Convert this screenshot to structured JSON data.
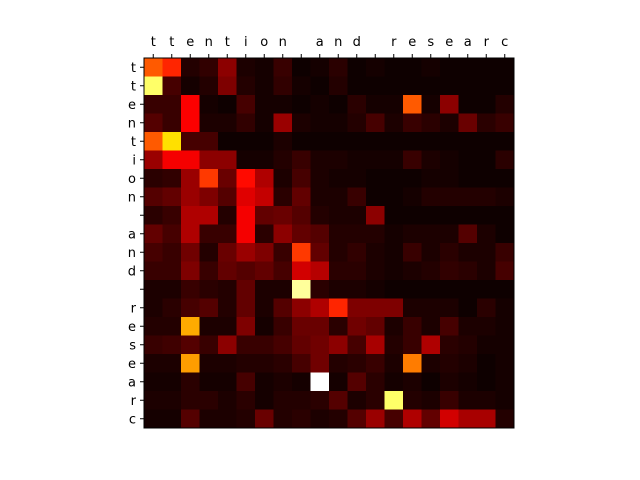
{
  "chart_data": {
    "type": "heatmap",
    "title": "",
    "xlabel": "",
    "ylabel": "",
    "colormap": "hot",
    "x_tick_position": "top",
    "x_labels": [
      "t",
      "t",
      "e",
      "n",
      "t",
      "i",
      "o",
      "n",
      " ",
      "a",
      "n",
      "d",
      " ",
      "r",
      "e",
      "s",
      "e",
      "a",
      "r",
      "c"
    ],
    "y_labels": [
      "t",
      "t",
      "e",
      "n",
      "t",
      "i",
      "o",
      "n",
      " ",
      "a",
      "n",
      "d",
      " ",
      "r",
      "e",
      "s",
      "e",
      "a",
      "r",
      "c"
    ],
    "values": [
      [
        0.5,
        0.42,
        0.05,
        0.07,
        0.2,
        0.04,
        0.03,
        0.08,
        0.02,
        0.03,
        0.06,
        0.02,
        0.03,
        0.02,
        0.02,
        0.03,
        0.02,
        0.02,
        0.02,
        0.02
      ],
      [
        0.85,
        0.1,
        0.03,
        0.05,
        0.18,
        0.05,
        0.03,
        0.07,
        0.03,
        0.02,
        0.05,
        0.02,
        0.02,
        0.02,
        0.02,
        0.02,
        0.02,
        0.02,
        0.02,
        0.02
      ],
      [
        0.08,
        0.08,
        0.36,
        0.03,
        0.02,
        0.1,
        0.03,
        0.03,
        0.02,
        0.03,
        0.02,
        0.06,
        0.03,
        0.03,
        0.5,
        0.03,
        0.2,
        0.02,
        0.02,
        0.05
      ],
      [
        0.12,
        0.08,
        0.36,
        0.04,
        0.04,
        0.07,
        0.03,
        0.22,
        0.04,
        0.03,
        0.03,
        0.05,
        0.1,
        0.04,
        0.08,
        0.06,
        0.04,
        0.15,
        0.06,
        0.08
      ],
      [
        0.5,
        0.7,
        0.1,
        0.1,
        0.02,
        0.02,
        0.02,
        0.04,
        0.02,
        0.02,
        0.02,
        0.02,
        0.02,
        0.02,
        0.02,
        0.02,
        0.02,
        0.02,
        0.02,
        0.02
      ],
      [
        0.22,
        0.35,
        0.35,
        0.2,
        0.2,
        0.03,
        0.03,
        0.05,
        0.08,
        0.04,
        0.04,
        0.03,
        0.03,
        0.03,
        0.08,
        0.04,
        0.03,
        0.02,
        0.02,
        0.06
      ],
      [
        0.06,
        0.07,
        0.22,
        0.45,
        0.15,
        0.38,
        0.25,
        0.04,
        0.1,
        0.04,
        0.03,
        0.03,
        0.02,
        0.02,
        0.02,
        0.03,
        0.03,
        0.02,
        0.02,
        0.02
      ],
      [
        0.12,
        0.14,
        0.22,
        0.18,
        0.12,
        0.32,
        0.28,
        0.06,
        0.14,
        0.04,
        0.04,
        0.08,
        0.02,
        0.02,
        0.03,
        0.05,
        0.05,
        0.05,
        0.05,
        0.04
      ],
      [
        0.06,
        0.08,
        0.25,
        0.25,
        0.05,
        0.35,
        0.14,
        0.15,
        0.12,
        0.05,
        0.04,
        0.04,
        0.2,
        0.02,
        0.02,
        0.02,
        0.02,
        0.02,
        0.02,
        0.02
      ],
      [
        0.14,
        0.1,
        0.25,
        0.08,
        0.08,
        0.35,
        0.06,
        0.2,
        0.14,
        0.12,
        0.05,
        0.05,
        0.05,
        0.03,
        0.04,
        0.04,
        0.04,
        0.12,
        0.04,
        0.02
      ],
      [
        0.1,
        0.08,
        0.16,
        0.05,
        0.15,
        0.22,
        0.18,
        0.08,
        0.45,
        0.14,
        0.05,
        0.07,
        0.04,
        0.03,
        0.08,
        0.04,
        0.06,
        0.04,
        0.04,
        0.08
      ],
      [
        0.08,
        0.08,
        0.18,
        0.08,
        0.14,
        0.12,
        0.14,
        0.1,
        0.3,
        0.26,
        0.06,
        0.06,
        0.04,
        0.03,
        0.04,
        0.05,
        0.07,
        0.06,
        0.04,
        0.1
      ],
      [
        0.04,
        0.04,
        0.08,
        0.06,
        0.05,
        0.14,
        0.04,
        0.04,
        0.9,
        0.06,
        0.04,
        0.04,
        0.03,
        0.02,
        0.02,
        0.02,
        0.02,
        0.02,
        0.02,
        0.02
      ],
      [
        0.04,
        0.06,
        0.1,
        0.12,
        0.05,
        0.14,
        0.04,
        0.12,
        0.2,
        0.25,
        0.42,
        0.18,
        0.18,
        0.18,
        0.04,
        0.04,
        0.04,
        0.02,
        0.06,
        0.03
      ],
      [
        0.05,
        0.05,
        0.62,
        0.04,
        0.04,
        0.18,
        0.03,
        0.08,
        0.15,
        0.15,
        0.06,
        0.16,
        0.14,
        0.04,
        0.08,
        0.04,
        0.1,
        0.04,
        0.04,
        0.03
      ],
      [
        0.08,
        0.09,
        0.12,
        0.08,
        0.2,
        0.08,
        0.08,
        0.1,
        0.14,
        0.16,
        0.2,
        0.1,
        0.24,
        0.05,
        0.08,
        0.25,
        0.06,
        0.05,
        0.03,
        0.03
      ],
      [
        0.04,
        0.04,
        0.6,
        0.04,
        0.04,
        0.05,
        0.05,
        0.06,
        0.1,
        0.16,
        0.05,
        0.06,
        0.08,
        0.04,
        0.55,
        0.04,
        0.05,
        0.04,
        0.02,
        0.03
      ],
      [
        0.03,
        0.03,
        0.06,
        0.03,
        0.03,
        0.1,
        0.03,
        0.04,
        0.03,
        1.0,
        0.03,
        0.12,
        0.06,
        0.03,
        0.04,
        0.02,
        0.04,
        0.03,
        0.02,
        0.03
      ],
      [
        0.04,
        0.04,
        0.06,
        0.06,
        0.04,
        0.06,
        0.03,
        0.05,
        0.05,
        0.06,
        0.12,
        0.04,
        0.06,
        0.85,
        0.05,
        0.04,
        0.08,
        0.04,
        0.04,
        0.03
      ],
      [
        0.03,
        0.03,
        0.12,
        0.04,
        0.04,
        0.05,
        0.15,
        0.05,
        0.06,
        0.04,
        0.05,
        0.12,
        0.22,
        0.1,
        0.25,
        0.14,
        0.3,
        0.24,
        0.24,
        0.05
      ]
    ]
  }
}
